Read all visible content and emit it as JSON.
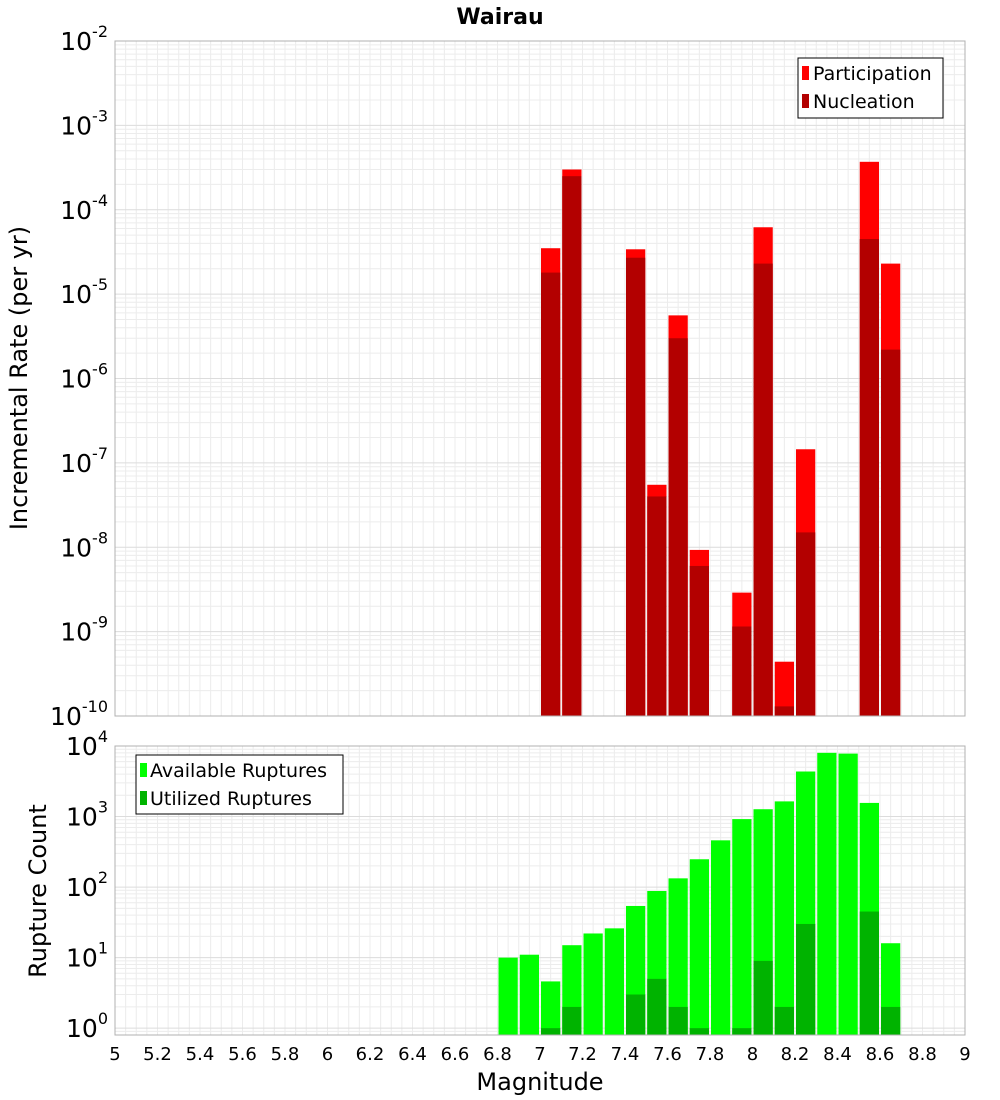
{
  "chart_data": [
    {
      "type": "bar",
      "title": "Wairau",
      "xlabel": "",
      "ylabel": "Incremental Rate (per yr)",
      "yscale": "log",
      "ylim": [
        1e-10,
        0.01
      ],
      "xlim": [
        5,
        9
      ],
      "bar_width": 0.1,
      "y_ticks": [
        "10",
        "10",
        "10",
        "10",
        "10",
        "10",
        "10",
        "10",
        "10"
      ],
      "y_tick_exponents": [
        "-2",
        "-3",
        "-4",
        "-5",
        "-6",
        "-7",
        "-8",
        "-9",
        "-10"
      ],
      "grid": true,
      "legend_position": "top-right",
      "series": [
        {
          "name": "Participation",
          "color": "#ff0000",
          "x": [
            7.05,
            7.15,
            7.45,
            7.55,
            7.65,
            7.75,
            7.95,
            8.05,
            8.15,
            8.25,
            8.55,
            8.65
          ],
          "values": [
            3.5e-05,
            0.0003,
            3.4e-05,
            5.5e-08,
            5.6e-06,
            9.3e-09,
            2.9e-09,
            6.2e-05,
            4.4e-10,
            1.45e-07,
            0.00037,
            2.3e-05
          ]
        },
        {
          "name": "Nucleation",
          "color": "#b30000",
          "x": [
            7.05,
            7.15,
            7.45,
            7.55,
            7.65,
            7.75,
            7.95,
            8.05,
            8.15,
            8.25,
            8.55,
            8.65
          ],
          "values": [
            1.8e-05,
            0.00025,
            2.7e-05,
            4e-08,
            3e-06,
            6e-09,
            1.15e-09,
            2.3e-05,
            1.3e-10,
            1.5e-08,
            4.5e-05,
            2.2e-06
          ]
        }
      ]
    },
    {
      "type": "bar",
      "title": "",
      "xlabel": "Magnitude",
      "ylabel": "Rupture Count",
      "yscale": "log",
      "ylim": [
        0.8,
        10000
      ],
      "xlim": [
        5,
        9
      ],
      "bar_width": 0.1,
      "x_ticks": [
        "5",
        "5.2",
        "5.4",
        "5.6",
        "5.8",
        "6",
        "6.2",
        "6.4",
        "6.6",
        "6.8",
        "7",
        "7.2",
        "7.4",
        "7.6",
        "7.8",
        "8",
        "8.2",
        "8.4",
        "8.6",
        "8.8",
        "9"
      ],
      "y_ticks": [
        "10",
        "10",
        "10",
        "10",
        "10"
      ],
      "y_tick_exponents": [
        "4",
        "3",
        "2",
        "1",
        "0"
      ],
      "grid": true,
      "legend_position": "top-left",
      "series": [
        {
          "name": "Available Ruptures",
          "color": "#00ff00",
          "x": [
            6.85,
            6.95,
            7.05,
            7.15,
            7.25,
            7.35,
            7.45,
            7.55,
            7.65,
            7.75,
            7.85,
            7.95,
            8.05,
            8.15,
            8.25,
            8.35,
            8.45,
            8.55,
            8.65
          ],
          "values": [
            10,
            11,
            4.6,
            15,
            22,
            26,
            54,
            88,
            133,
            248,
            460,
            920,
            1270,
            1640,
            4350,
            8000,
            7800,
            1560,
            16
          ]
        },
        {
          "name": "Utilized Ruptures",
          "color": "#00b300",
          "x": [
            7.05,
            7.15,
            7.45,
            7.55,
            7.65,
            7.75,
            7.95,
            8.05,
            8.15,
            8.25,
            8.55,
            8.65
          ],
          "values": [
            1,
            2,
            3,
            5,
            2,
            1,
            1,
            9,
            2,
            30,
            45,
            2
          ]
        }
      ]
    }
  ]
}
